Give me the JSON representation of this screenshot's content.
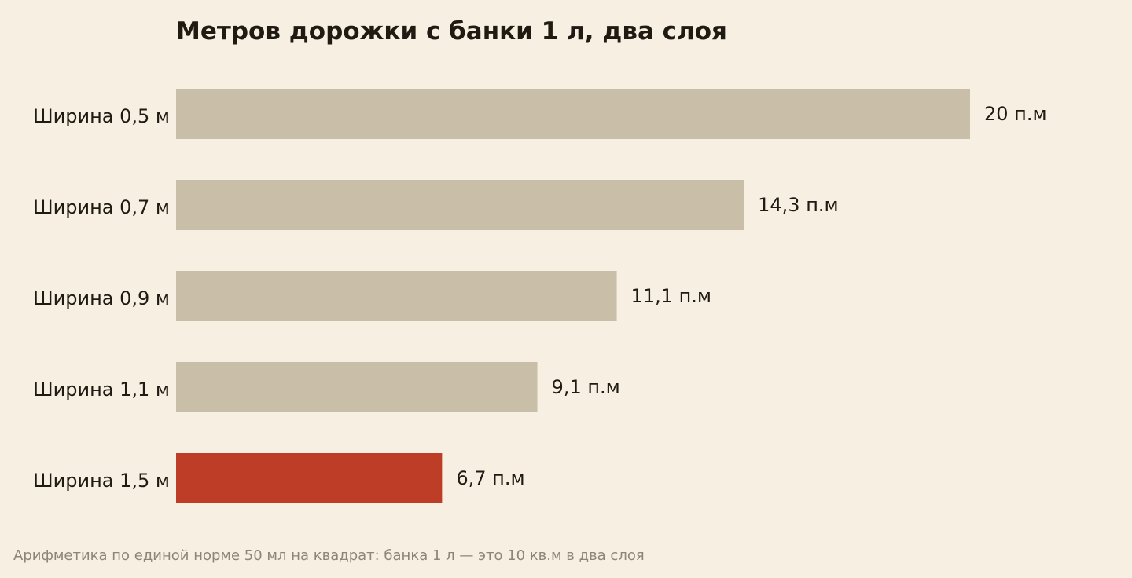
{
  "chart_data": {
    "type": "bar",
    "orientation": "horizontal",
    "title": "Метров дорожки с банки 1 л, два слоя",
    "footnote": "Арифметика по единой норме 50 мл на квадрат: банка 1 л — это 10 кв.м в два слоя",
    "categories": [
      "Ширина 0,5 м",
      "Ширина 0,7 м",
      "Ширина 0,9 м",
      "Ширина 1,1 м",
      "Ширина 1,5 м"
    ],
    "values": [
      20,
      14.3,
      11.1,
      9.1,
      6.7
    ],
    "value_labels": [
      "20 п.м",
      "14,3 п.м",
      "11,1 п.м",
      "9,1 п.м",
      "6,7 п.м"
    ],
    "highlight_index": 4,
    "xlim": [
      0,
      20
    ],
    "grid": false,
    "legend": "none",
    "colors": {
      "bar": "#c9bfa8",
      "highlight": "#bd3d26",
      "background": "#f6efe2",
      "text": "#1f1a12",
      "footnote": "#8c8578"
    }
  }
}
